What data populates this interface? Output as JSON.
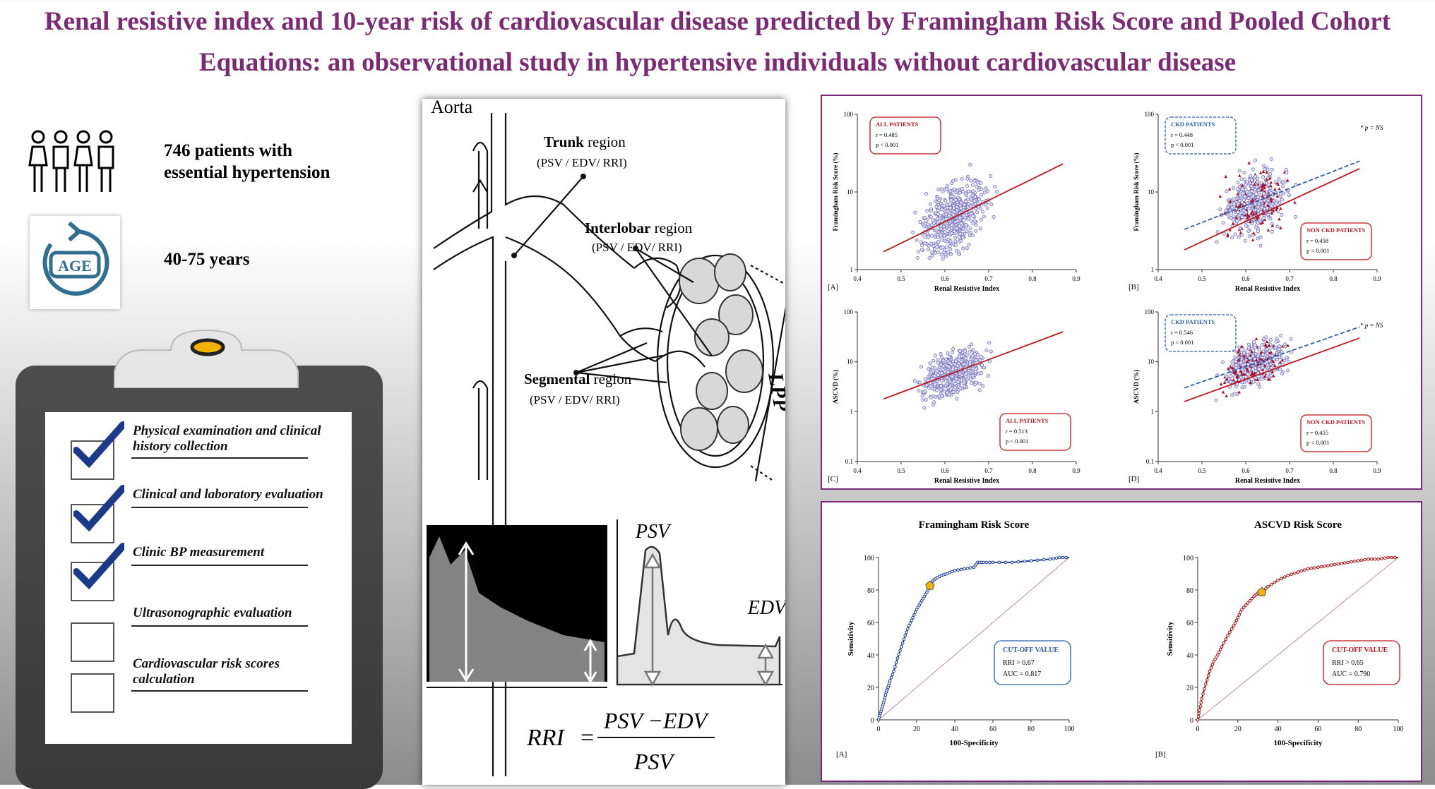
{
  "title": {
    "line1": "Renal resistive index and 10-year risk of cardiovascular disease predicted by Framingham Risk Score and Pooled Cohort",
    "line2": "Equations: an observational study in hypertensive individuals without cardiovascular disease"
  },
  "left": {
    "patients_line1": "746 patients with",
    "patients_line2": "essential hypertension",
    "age_icon_text": "AGE",
    "age_range": "40-75 years",
    "checklist": [
      {
        "line1": "Physical examination and clinical",
        "line2": "history collection",
        "checked": true
      },
      {
        "line1": "Clinical and laboratory evaluation",
        "line2": "",
        "checked": true
      },
      {
        "line1": "Clinic BP measurement",
        "line2": "",
        "checked": true
      },
      {
        "line1": "Ultrasonographic evaluation",
        "line2": "",
        "checked": false
      },
      {
        "line1": "Cardiovascular risk scores",
        "line2": "calculation",
        "checked": false
      }
    ]
  },
  "diagram": {
    "aorta": "Aorta",
    "trunk_title": "Trunk",
    "region_word": "region",
    "trunk_sub": "(PSV / EDV/ RRI)",
    "interlobar_title": "Interlobar",
    "interlobar_sub": "(PSV / EDV/ RRI)",
    "segmental_title": "Segmental",
    "segmental_sub": "(PSV / EDV/ RRI)",
    "lpp": "LPP",
    "psv": "PSV",
    "edv": "EDV",
    "formula_lhs": "RRI",
    "formula_eq": "=",
    "formula_num": "PSV −EDV",
    "formula_den": "PSV"
  },
  "colors": {
    "title": "#7b2a73",
    "red": "#c0161c",
    "blue": "#2b5faa",
    "dot": "#7a78c0",
    "darkred": "#a5102a"
  },
  "chart_data": [
    {
      "type": "scatter",
      "panel": "[A]",
      "ylabel": "Framingham Risk Score  (%)",
      "xlabel": "Renal Resistive Index",
      "x_ticks": [
        "0.4",
        "0.5",
        "0.6",
        "0.7",
        "0.8",
        "0.9"
      ],
      "y_ticks": [
        "1",
        "10",
        "100"
      ],
      "xlim": [
        0.4,
        0.9
      ],
      "ylim_log": [
        1,
        100
      ],
      "box": {
        "title": "ALL PATIENTS",
        "r": "r = 0.485",
        "p": "p < 0.001",
        "color": "red"
      },
      "fit": [
        {
          "x": [
            0.46,
            0.87
          ],
          "y": [
            1.7,
            23
          ],
          "color": "red"
        }
      ]
    },
    {
      "type": "scatter",
      "panel": "[B]",
      "ylabel": "Framingham Risk Score  (%)",
      "xlabel": "Renal Resistive Index",
      "x_ticks": [
        "0.4",
        "0.5",
        "0.6",
        "0.7",
        "0.8",
        "0.9"
      ],
      "y_ticks": [
        "1",
        "10",
        "100"
      ],
      "xlim": [
        0.4,
        0.9
      ],
      "ylim_log": [
        1,
        100
      ],
      "box": {
        "title": "CKD PATIENTS",
        "r": "r = 0.448",
        "p": "p < 0.001",
        "color": "blue"
      },
      "box2": {
        "title": "NON CKD PATIENTS",
        "r": "r = 0.458",
        "p": "p < 0.001",
        "color": "red"
      },
      "note": "* p = NS",
      "fit": [
        {
          "x": [
            0.46,
            0.86
          ],
          "y": [
            3.3,
            25
          ],
          "color": "blue"
        },
        {
          "x": [
            0.46,
            0.86
          ],
          "y": [
            1.8,
            20
          ],
          "color": "red"
        }
      ]
    },
    {
      "type": "scatter",
      "panel": "[C]",
      "ylabel": "ASCVD  (%)",
      "xlabel": "Renal Resistive Index",
      "x_ticks": [
        "0.4",
        "0.5",
        "0.6",
        "0.7",
        "0.8",
        "0.9"
      ],
      "y_ticks": [
        "0.1",
        "1",
        "10",
        "100"
      ],
      "xlim": [
        0.4,
        0.9
      ],
      "ylim_log": [
        0.1,
        100
      ],
      "box": {
        "title": "ALL PATIENTS",
        "r": "r = 0.513",
        "p": "p < 0.001",
        "color": "red"
      },
      "fit": [
        {
          "x": [
            0.46,
            0.87
          ],
          "y": [
            1.8,
            40
          ],
          "color": "red"
        }
      ]
    },
    {
      "type": "scatter",
      "panel": "[D]",
      "ylabel": "ASCVD  (%)",
      "xlabel": "Renal Resistive Index",
      "x_ticks": [
        "0.4",
        "0.5",
        "0.6",
        "0.7",
        "0.8",
        "0.9"
      ],
      "y_ticks": [
        "0.1",
        "1",
        "10",
        "100"
      ],
      "xlim": [
        0.4,
        0.9
      ],
      "ylim_log": [
        0.1,
        100
      ],
      "box": {
        "title": "CKD PATIENTS",
        "r": "r = 0.546",
        "p": "p < 0.001",
        "color": "blue"
      },
      "box2": {
        "title": "NON CKD PATIENTS",
        "r": "r = 0.455",
        "p": "p < 0.001",
        "color": "red"
      },
      "note": "* p = NS",
      "fit": [
        {
          "x": [
            0.46,
            0.86
          ],
          "y": [
            3,
            50
          ],
          "color": "blue"
        },
        {
          "x": [
            0.46,
            0.86
          ],
          "y": [
            1.6,
            30
          ],
          "color": "red"
        }
      ]
    },
    {
      "type": "line",
      "title": "Framingham Risk Score",
      "panel": "[A]",
      "xlabel": "100-Specificity",
      "ylabel": "Sensitivity",
      "ticks": [
        "0",
        "20",
        "40",
        "60",
        "80",
        "100"
      ],
      "box": {
        "title": "CUT-OFF VALUE",
        "l1": "RRI > 0.67",
        "l2": "AUC = 0.817",
        "color": "blue"
      },
      "cutoff": {
        "x": 27,
        "y": 83
      },
      "x": [
        0,
        1,
        2,
        3,
        4,
        5,
        6,
        8,
        10,
        12,
        14,
        16,
        18,
        20,
        22,
        24,
        26,
        27,
        28,
        30,
        33,
        36,
        40,
        45,
        50,
        52,
        55,
        60,
        70,
        80,
        90,
        95,
        100
      ],
      "y": [
        0,
        4,
        8,
        12,
        17,
        20,
        24,
        30,
        38,
        45,
        52,
        58,
        63,
        68,
        72,
        76,
        80,
        83,
        85,
        87,
        89,
        90,
        92,
        93,
        94,
        97,
        97,
        97,
        97,
        98,
        99,
        100,
        100
      ]
    },
    {
      "type": "line",
      "title": "ASCVD Risk Score",
      "panel": "[B]",
      "xlabel": "100-Specificity",
      "ylabel": "Sensitivity",
      "ticks": [
        "0",
        "20",
        "40",
        "60",
        "80",
        "100"
      ],
      "box": {
        "title": "CUT-OFF VALUE",
        "l1": "RRI > 0.65",
        "l2": "AUC = 0.790",
        "color": "red"
      },
      "cutoff": {
        "x": 32,
        "y": 79
      },
      "x": [
        0,
        1,
        2,
        4,
        6,
        8,
        10,
        12,
        15,
        18,
        20,
        22,
        25,
        28,
        30,
        32,
        35,
        40,
        45,
        50,
        55,
        60,
        65,
        70,
        75,
        80,
        85,
        90,
        95,
        100
      ],
      "y": [
        0,
        6,
        13,
        22,
        30,
        36,
        40,
        45,
        52,
        58,
        63,
        68,
        72,
        76,
        78,
        79,
        82,
        86,
        89,
        91,
        93,
        94,
        95,
        96,
        97,
        98,
        99,
        99,
        100,
        100
      ]
    }
  ]
}
